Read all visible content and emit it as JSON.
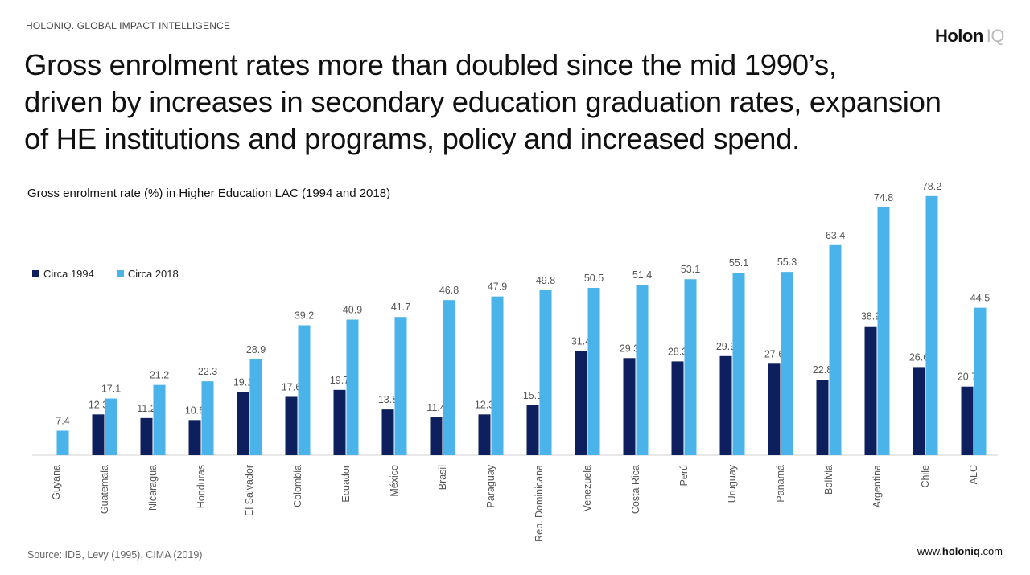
{
  "header": {
    "topline": "HOLONIQ. GLOBAL IMPACT INTELLIGENCE",
    "brand_main": "Holon",
    "brand_suffix": "IQ"
  },
  "headline": {
    "line1": "Gross enrolment rates more than doubled since the mid 1990’s,",
    "line2": "driven by increases in secondary education graduation rates, expansion",
    "line3": "of HE institutions and programs, policy and increased spend."
  },
  "footer": {
    "source": "Source: IDB, Levy (1995), CIMA (2019)",
    "site_prefix": "www.",
    "site_bold": "holoniq",
    "site_suffix": ".com"
  },
  "colors": {
    "series1": "#0d1f5c",
    "series2": "#4ab3ea",
    "axis": "#d0d0d0",
    "label": "#555555"
  },
  "chart_data": {
    "type": "bar",
    "title": "Gross enrolment rate (%) in Higher Education LAC (1994 and 2018)",
    "xlabel": "",
    "ylabel": "",
    "ylim": [
      0,
      85
    ],
    "legend_position": "top-left",
    "grid": false,
    "categories": [
      "Guyana",
      "Guatemala",
      "Nicaragua",
      "Honduras",
      "El Salvador",
      "Colombia",
      "Ecuador",
      "México",
      "Brasil",
      "Paraguay",
      "Rep. Dominicana",
      "Venezuela",
      "Costa Rica",
      "Perú",
      "Uruguay",
      "Panamá",
      "Bolivia",
      "Argentina",
      "Chile",
      "ALC"
    ],
    "series": [
      {
        "name": "Circa 1994",
        "values": [
          null,
          12.3,
          11.2,
          10.6,
          19.1,
          17.6,
          19.7,
          13.8,
          11.4,
          12.3,
          15.1,
          31.4,
          29.3,
          28.3,
          29.9,
          27.6,
          22.8,
          38.9,
          26.6,
          20.7
        ]
      },
      {
        "name": "Circa 2018",
        "values": [
          7.4,
          17.1,
          21.2,
          22.3,
          28.9,
          39.2,
          40.9,
          41.7,
          46.8,
          47.9,
          49.8,
          50.5,
          51.4,
          53.1,
          55.1,
          55.3,
          63.4,
          74.8,
          78.2,
          44.5
        ]
      }
    ]
  }
}
